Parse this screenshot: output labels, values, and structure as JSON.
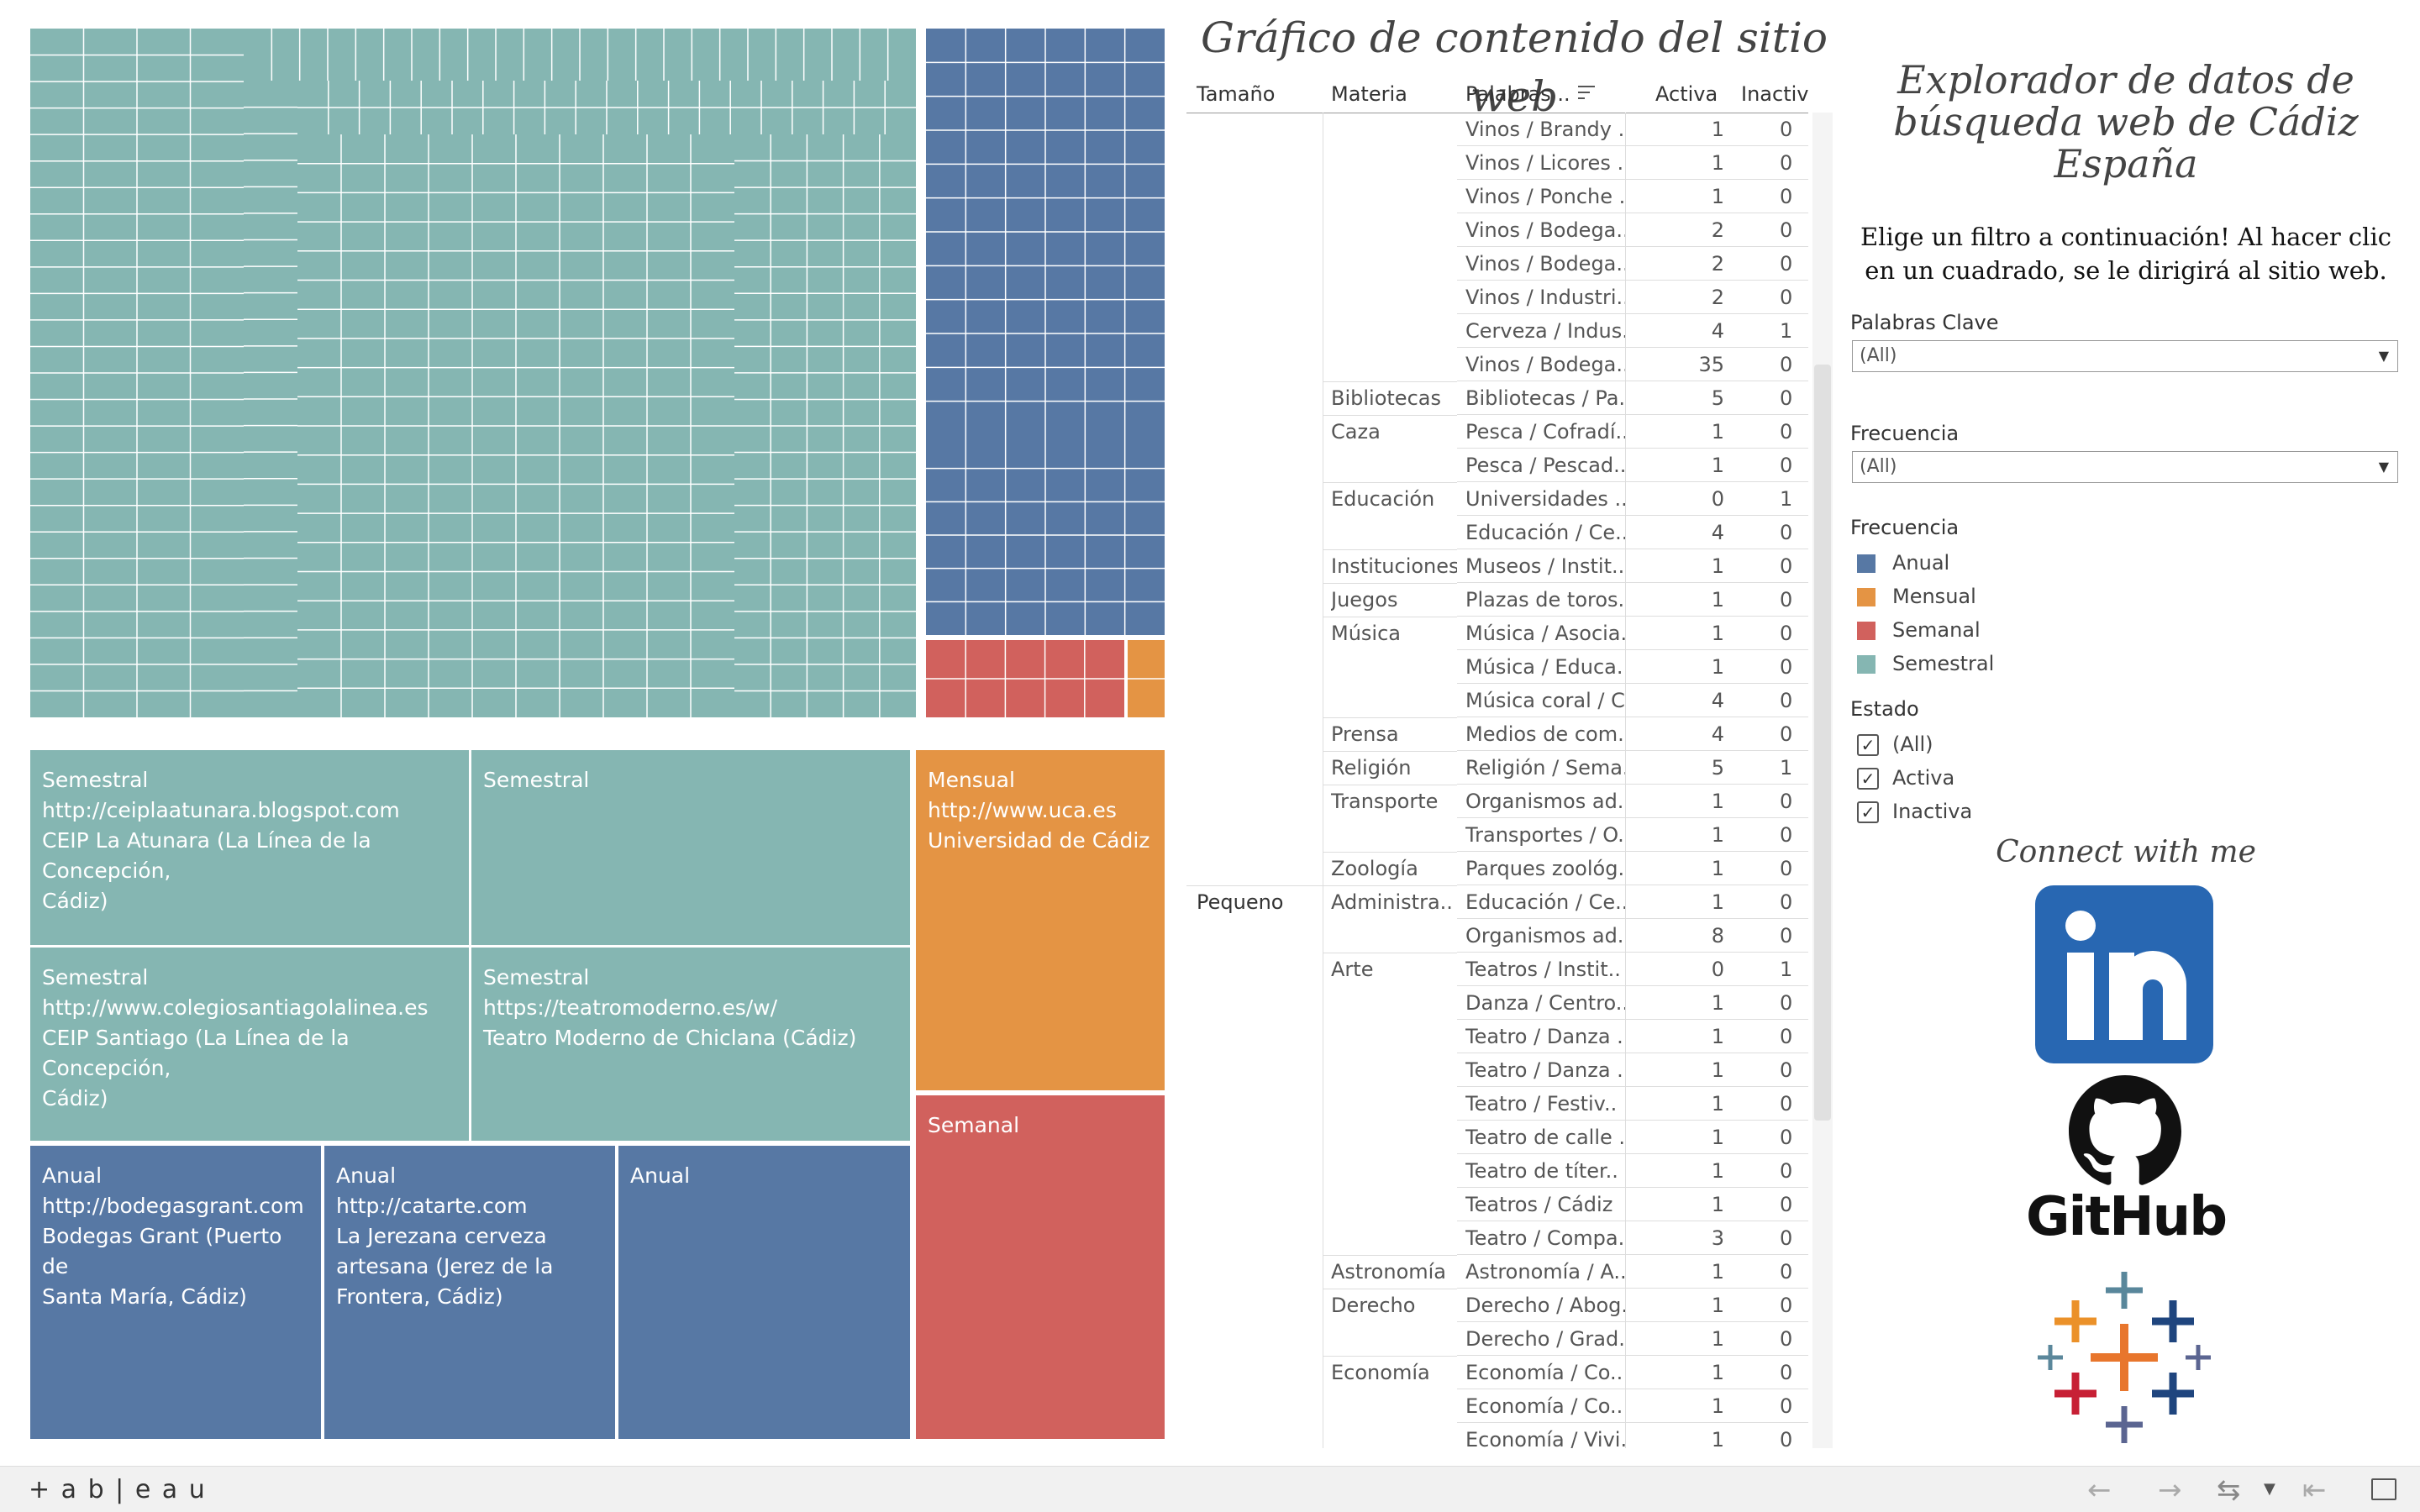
{
  "colors": {
    "anual": "#5778a4",
    "mensual": "#e49444",
    "semanal": "#d1615d",
    "semestral": "#85b6b2"
  },
  "table": {
    "title": "Gráfico de contenido del sitio web",
    "headers": {
      "tamano": "Tamaño",
      "materia": "Materia",
      "palabras": "Palabras ..",
      "activa": "Activa",
      "inactiva": "Inactiv"
    },
    "rows": [
      {
        "tamano": "",
        "materia": "",
        "palabras": "Vinos / Brandy ..",
        "activa": "1",
        "inactiva": "0"
      },
      {
        "tamano": "",
        "materia": "",
        "palabras": "Vinos / Licores ..",
        "activa": "1",
        "inactiva": "0"
      },
      {
        "tamano": "",
        "materia": "",
        "palabras": "Vinos / Ponche ..",
        "activa": "1",
        "inactiva": "0"
      },
      {
        "tamano": "",
        "materia": "",
        "palabras": "Vinos / Bodega..",
        "activa": "2",
        "inactiva": "0"
      },
      {
        "tamano": "",
        "materia": "",
        "palabras": "Vinos / Bodega..",
        "activa": "2",
        "inactiva": "0"
      },
      {
        "tamano": "",
        "materia": "",
        "palabras": "Vinos / Industri..",
        "activa": "2",
        "inactiva": "0"
      },
      {
        "tamano": "",
        "materia": "",
        "palabras": "Cerveza / Indus..",
        "activa": "4",
        "inactiva": "1"
      },
      {
        "tamano": "",
        "materia": "",
        "palabras": "Vinos / Bodega..",
        "activa": "35",
        "inactiva": "0"
      },
      {
        "tamano": "",
        "materia": "Bibliotecas",
        "palabras": "Bibliotecas / Pa..",
        "activa": "5",
        "inactiva": "0"
      },
      {
        "tamano": "",
        "materia": "Caza",
        "palabras": "Pesca / Cofradí..",
        "activa": "1",
        "inactiva": "0"
      },
      {
        "tamano": "",
        "materia": "",
        "palabras": "Pesca / Pescad..",
        "activa": "1",
        "inactiva": "0"
      },
      {
        "tamano": "",
        "materia": "Educación",
        "palabras": "Universidades ..",
        "activa": "0",
        "inactiva": "1"
      },
      {
        "tamano": "",
        "materia": "",
        "palabras": "Educación / Ce..",
        "activa": "4",
        "inactiva": "0"
      },
      {
        "tamano": "",
        "materia": "Instituciones",
        "palabras": "Museos / Instit..",
        "activa": "1",
        "inactiva": "0"
      },
      {
        "tamano": "",
        "materia": "Juegos",
        "palabras": "Plazas de toros..",
        "activa": "1",
        "inactiva": "0"
      },
      {
        "tamano": "",
        "materia": "Música",
        "palabras": "Música / Asocia..",
        "activa": "1",
        "inactiva": "0"
      },
      {
        "tamano": "",
        "materia": "",
        "palabras": "Música / Educa..",
        "activa": "1",
        "inactiva": "0"
      },
      {
        "tamano": "",
        "materia": "",
        "palabras": "Música coral / C..",
        "activa": "4",
        "inactiva": "0"
      },
      {
        "tamano": "",
        "materia": "Prensa",
        "palabras": "Medios de com..",
        "activa": "4",
        "inactiva": "0"
      },
      {
        "tamano": "",
        "materia": "Religión",
        "palabras": "Religión / Sema..",
        "activa": "5",
        "inactiva": "1"
      },
      {
        "tamano": "",
        "materia": "Transporte",
        "palabras": "Organismos ad..",
        "activa": "1",
        "inactiva": "0"
      },
      {
        "tamano": "",
        "materia": "",
        "palabras": "Transportes / O..",
        "activa": "1",
        "inactiva": "0"
      },
      {
        "tamano": "",
        "materia": "Zoología",
        "palabras": "Parques zoológ..",
        "activa": "1",
        "inactiva": "0"
      },
      {
        "tamano": "Pequeno",
        "materia": "Administra..",
        "palabras": "Educación / Ce..",
        "activa": "1",
        "inactiva": "0"
      },
      {
        "tamano": "",
        "materia": "",
        "palabras": "Organismos ad..",
        "activa": "8",
        "inactiva": "0"
      },
      {
        "tamano": "",
        "materia": "Arte",
        "palabras": "Teatros / Instit..",
        "activa": "0",
        "inactiva": "1"
      },
      {
        "tamano": "",
        "materia": "",
        "palabras": "Danza / Centro..",
        "activa": "1",
        "inactiva": "0"
      },
      {
        "tamano": "",
        "materia": "",
        "palabras": "Teatro / Danza ..",
        "activa": "1",
        "inactiva": "0"
      },
      {
        "tamano": "",
        "materia": "",
        "palabras": "Teatro / Danza ..",
        "activa": "1",
        "inactiva": "0"
      },
      {
        "tamano": "",
        "materia": "",
        "palabras": "Teatro / Festiv..",
        "activa": "1",
        "inactiva": "0"
      },
      {
        "tamano": "",
        "materia": "",
        "palabras": "Teatro de calle ..",
        "activa": "1",
        "inactiva": "0"
      },
      {
        "tamano": "",
        "materia": "",
        "palabras": "Teatro de títer..",
        "activa": "1",
        "inactiva": "0"
      },
      {
        "tamano": "",
        "materia": "",
        "palabras": "Teatros / Cádiz",
        "activa": "1",
        "inactiva": "0"
      },
      {
        "tamano": "",
        "materia": "",
        "palabras": "Teatro / Compa..",
        "activa": "3",
        "inactiva": "0"
      },
      {
        "tamano": "",
        "materia": "Astronomía",
        "palabras": "Astronomía / A..",
        "activa": "1",
        "inactiva": "0"
      },
      {
        "tamano": "",
        "materia": "Derecho",
        "palabras": "Derecho / Abog..",
        "activa": "1",
        "inactiva": "0"
      },
      {
        "tamano": "",
        "materia": "",
        "palabras": "Derecho / Grad..",
        "activa": "1",
        "inactiva": "0"
      },
      {
        "tamano": "",
        "materia": "Economía",
        "palabras": "Economía / Co..",
        "activa": "1",
        "inactiva": "0"
      },
      {
        "tamano": "",
        "materia": "",
        "palabras": "Economía / Co..",
        "activa": "1",
        "inactiva": "0"
      },
      {
        "tamano": "",
        "materia": "",
        "palabras": "Economía / Vivi..",
        "activa": "1",
        "inactiva": "0"
      }
    ]
  },
  "sidebar": {
    "title": "Explorador de datos de búsqueda web de Cádiz España",
    "instructions": "Elige un filtro a continuación! Al hacer clic en un cuadrado, se le dirigirá al sitio web.",
    "keywords_label": "Palabras Clave",
    "keywords_value": "(All)",
    "freq_label": "Frecuencia",
    "freq_value": "(All)",
    "legend_title": "Frecuencia",
    "legend": [
      {
        "label": "Anual",
        "color": "#5778a4"
      },
      {
        "label": "Mensual",
        "color": "#e49444"
      },
      {
        "label": "Semanal",
        "color": "#d1615d"
      },
      {
        "label": "Semestral",
        "color": "#85b6b2"
      }
    ],
    "estado_label": "Estado",
    "estado": [
      {
        "label": "(All)",
        "checked": "✓"
      },
      {
        "label": "Activa",
        "checked": "✓"
      },
      {
        "label": "Inactiva",
        "checked": "✓"
      }
    ],
    "connect": "Connect with me",
    "github_label": "GitHub"
  },
  "treemap_cells": [
    {
      "freq": "Semestral",
      "text": "Semestral\nhttp://ceiplaatunara.blogspot.com\nCEIP La Atunara (La Línea de la Concepción,\nCádiz)"
    },
    {
      "freq": "Semestral",
      "text": "Semestral"
    },
    {
      "freq": "Semestral",
      "text": "Semestral\nhttp://www.colegiosantiagolalinea.es\nCEIP Santiago (La Línea de la Concepción,\nCádiz)"
    },
    {
      "freq": "Semestral",
      "text": "Semestral\nhttps://teatromoderno.es/w/\nTeatro Moderno de Chiclana (Cádiz)"
    },
    {
      "freq": "Mensual",
      "text": "Mensual\nhttp://www.uca.es\nUniversidad de Cádiz"
    },
    {
      "freq": "Semanal",
      "text": "Semanal"
    },
    {
      "freq": "Anual",
      "text": "Anual\nhttp://bodegasgrant.com\nBodegas Grant (Puerto de\nSanta María, Cádiz)"
    },
    {
      "freq": "Anual",
      "text": "Anual\nhttp://catarte.com\nLa Jerezana cerveza\nartesana (Jerez de la\nFrontera, Cádiz)"
    },
    {
      "freq": "Anual",
      "text": "Anual"
    }
  ],
  "footer": {
    "brand": "+ a b | e a u"
  }
}
